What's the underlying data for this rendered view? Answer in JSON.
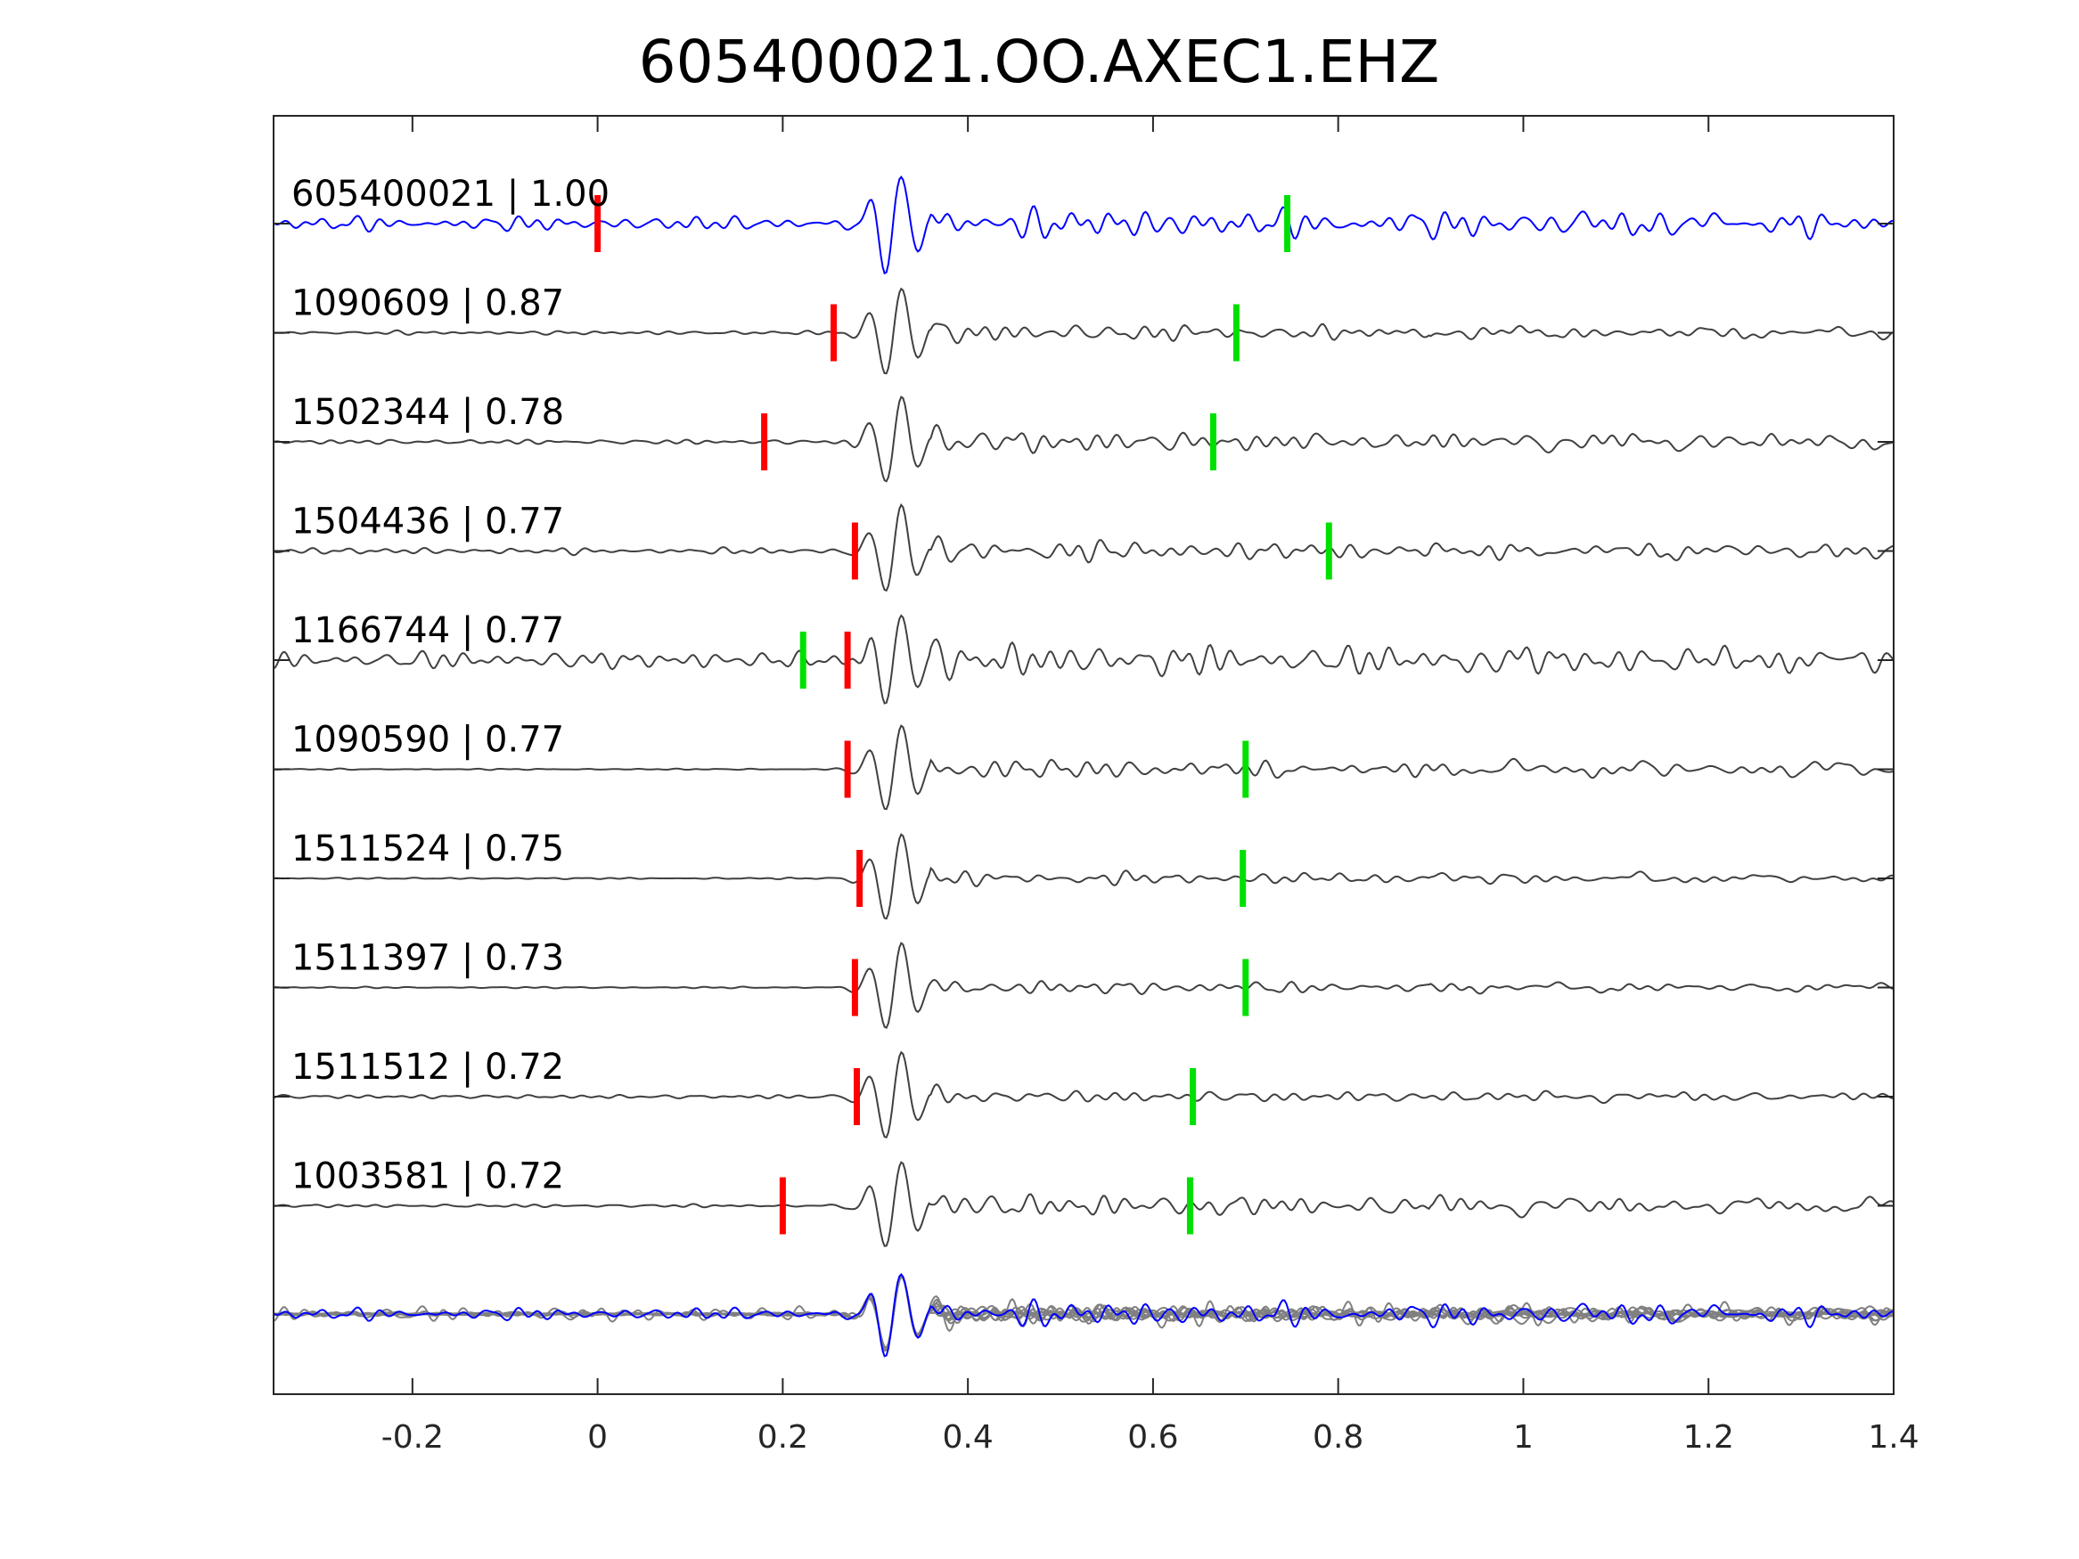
{
  "chart_data": {
    "type": "line",
    "title": "605400021.OO.AXEC1.EHZ",
    "xlabel": "",
    "ylabel": "",
    "xlim": [
      -0.35,
      1.4
    ],
    "xticks": [
      {
        "value": -0.2,
        "label": "-0.2"
      },
      {
        "value": 0,
        "label": "0"
      },
      {
        "value": 0.2,
        "label": "0.2"
      },
      {
        "value": 0.4,
        "label": "0.4"
      },
      {
        "value": 0.6,
        "label": "0.6"
      },
      {
        "value": 0.8,
        "label": "0.8"
      },
      {
        "value": 1,
        "label": "1"
      },
      {
        "value": 1.2,
        "label": "1.2"
      },
      {
        "value": 1.4,
        "label": "1.4"
      }
    ],
    "grid": false,
    "colors": {
      "master_trace": "#0000ff",
      "trace": "#404040",
      "overlay_trace": "#808080",
      "p_pick": "#ff0000",
      "s_pick": "#00e000",
      "axes": "#262626"
    },
    "series": [
      {
        "label": "605400021 | 1.00",
        "event": "605400021",
        "cc": 1.0,
        "p_pick": 0.0,
        "s_pick": 0.745,
        "quiet": 0.45,
        "energy": 0.6,
        "seed": 3,
        "master": true
      },
      {
        "label": "1090609 | 0.87",
        "event": "1090609",
        "cc": 0.87,
        "p_pick": 0.255,
        "s_pick": 0.69,
        "quiet": 0.12,
        "energy": 0.45,
        "seed": 7
      },
      {
        "label": "1502344 | 0.78",
        "event": "1502344",
        "cc": 0.78,
        "p_pick": 0.18,
        "s_pick": 0.665,
        "quiet": 0.15,
        "energy": 0.6,
        "seed": 11
      },
      {
        "label": "1504436 | 0.77",
        "event": "1504436",
        "cc": 0.77,
        "p_pick": 0.278,
        "s_pick": 0.79,
        "quiet": 0.2,
        "energy": 0.5,
        "seed": 13
      },
      {
        "label": "1166744 | 0.77",
        "event": "1166744",
        "cc": 0.77,
        "p_pick": 0.27,
        "s_pick": 0.222,
        "quiet": 0.55,
        "energy": 0.55,
        "seed": 17
      },
      {
        "label": "1090590 | 0.77",
        "event": "1090590",
        "cc": 0.77,
        "p_pick": 0.27,
        "s_pick": 0.7,
        "quiet": 0.04,
        "energy": 0.65,
        "seed": 19
      },
      {
        "label": "1511524 | 0.75",
        "event": "1511524",
        "cc": 0.75,
        "p_pick": 0.283,
        "s_pick": 0.697,
        "quiet": 0.05,
        "energy": 0.4,
        "seed": 23
      },
      {
        "label": "1511397 | 0.73",
        "event": "1511397",
        "cc": 0.73,
        "p_pick": 0.278,
        "s_pick": 0.7,
        "quiet": 0.05,
        "energy": 0.4,
        "seed": 29
      },
      {
        "label": "1511512 | 0.72",
        "event": "1511512",
        "cc": 0.72,
        "p_pick": 0.28,
        "s_pick": 0.643,
        "quiet": 0.12,
        "energy": 0.3,
        "seed": 31
      },
      {
        "label": "1003581 | 0.72",
        "event": "1003581",
        "cc": 0.72,
        "p_pick": 0.2,
        "s_pick": 0.64,
        "quiet": 0.1,
        "energy": 0.7,
        "seed": 37
      }
    ],
    "overlay": {
      "description_printed": false
    }
  }
}
